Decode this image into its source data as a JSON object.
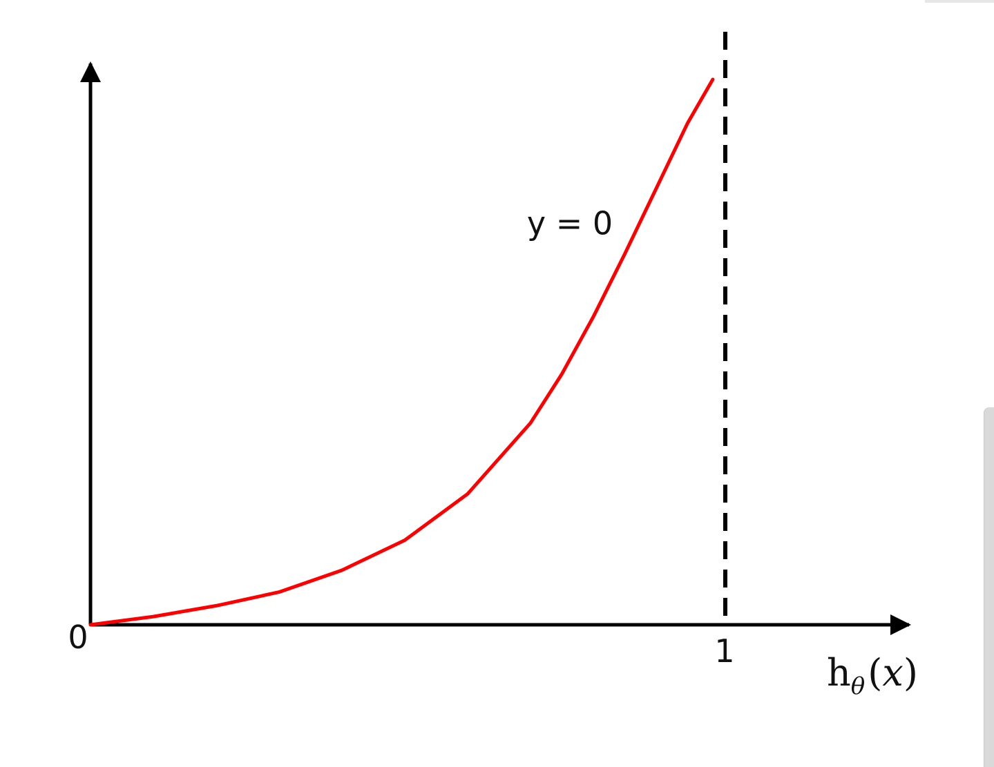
{
  "chart_data": {
    "type": "line",
    "series": [
      {
        "color": "#ff0000",
        "x": [
          0,
          0.1,
          0.2,
          0.3,
          0.4,
          0.5,
          0.6,
          0.7,
          0.75,
          0.8,
          0.85,
          0.9,
          0.95,
          0.99
        ],
        "y": [
          0,
          0.015,
          0.035,
          0.06,
          0.1,
          0.155,
          0.24,
          0.37,
          0.46,
          0.565,
          0.68,
          0.8,
          0.92,
          1.0
        ]
      }
    ],
    "xlim": [
      0,
      1.3
    ],
    "ylim": [
      0,
      1.1
    ],
    "x_ticks": [
      {
        "value": 0,
        "label": "0"
      },
      {
        "value": 1,
        "label": "1"
      }
    ],
    "xlabel": {
      "main": "h",
      "subscript": "θ",
      "open": "(",
      "var": "x",
      "close": ")"
    },
    "ylabel": "",
    "annotation": {
      "text": "y = 0",
      "x": 0.79,
      "y": 0.735
    },
    "asymptote": {
      "x": 1,
      "style": "dashed",
      "color": "#000000"
    },
    "grid": false,
    "legend": "none"
  }
}
